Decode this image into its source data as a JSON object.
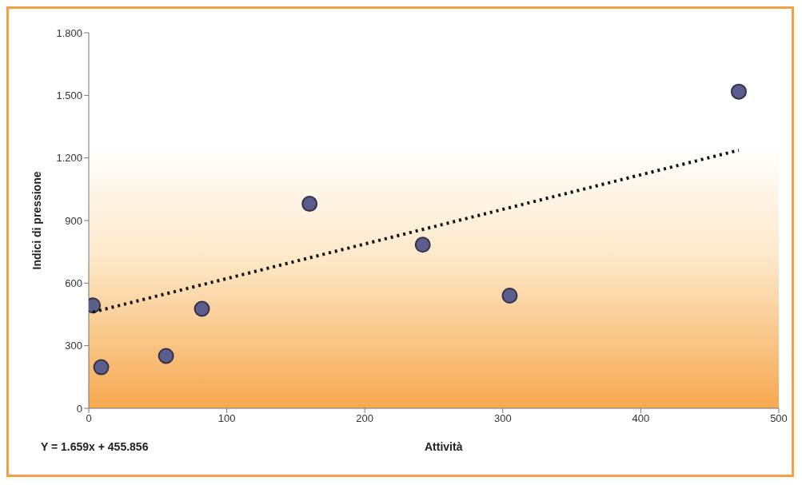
{
  "chart_data": {
    "type": "scatter",
    "xlabel": "Attività",
    "ylabel": "Indici di pressione",
    "annotations": [
      "Y = 1.659x + 455.856"
    ],
    "series": [
      {
        "color": "#5b5d8c",
        "marker": "circle",
        "x": [
          3,
          9,
          56,
          82,
          160,
          242,
          305,
          471
        ],
        "values": [
          493,
          197,
          251,
          477,
          980,
          784,
          540,
          1518
        ]
      },
      {
        "type": "line",
        "color": "#111111",
        "line_style": "dotted",
        "x": [
          3,
          471
        ],
        "values": [
          461,
          1237
        ]
      }
    ],
    "xlim": [
      0,
      500
    ],
    "xticks": [
      0,
      100,
      200,
      300,
      400,
      500
    ],
    "ylim": [
      0,
      1800
    ],
    "yticks": [
      0,
      300,
      600,
      900,
      {
        "value": 1200,
        "label": "1.200"
      },
      {
        "value": 1500,
        "label": "1.500"
      },
      {
        "value": 1800,
        "label": "1.800"
      }
    ],
    "grid": false
  }
}
